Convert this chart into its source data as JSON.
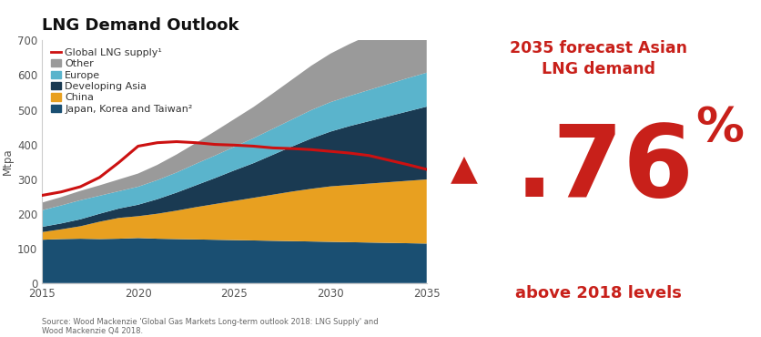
{
  "title": "LNG Demand Outlook",
  "ylabel": "Mtpa",
  "source_text": "Source: Wood Mackenzie 'Global Gas Markets Long-term outlook 2018: LNG Supply' and\nWood Mackenzie Q4 2018.",
  "years": [
    2015,
    2016,
    2017,
    2018,
    2019,
    2020,
    2021,
    2022,
    2023,
    2024,
    2025,
    2026,
    2027,
    2028,
    2029,
    2030,
    2031,
    2032,
    2033,
    2034,
    2035
  ],
  "japan_korea_taiwan": [
    125,
    127,
    128,
    127,
    128,
    130,
    128,
    127,
    126,
    125,
    124,
    123,
    122,
    121,
    120,
    119,
    118,
    117,
    116,
    115,
    114
  ],
  "china": [
    22,
    28,
    36,
    50,
    60,
    63,
    72,
    82,
    93,
    103,
    113,
    123,
    133,
    143,
    152,
    160,
    165,
    170,
    175,
    180,
    185
  ],
  "developing_asia": [
    15,
    17,
    20,
    23,
    27,
    33,
    42,
    52,
    63,
    75,
    88,
    100,
    115,
    130,
    145,
    158,
    170,
    180,
    190,
    200,
    210
  ],
  "europe": [
    48,
    52,
    55,
    52,
    50,
    52,
    55,
    58,
    62,
    65,
    68,
    72,
    75,
    78,
    82,
    85,
    87,
    90,
    93,
    96,
    98
  ],
  "other": [
    22,
    24,
    27,
    30,
    34,
    38,
    44,
    52,
    60,
    70,
    80,
    90,
    102,
    115,
    128,
    140,
    150,
    158,
    165,
    172,
    178
  ],
  "global_lng_supply": [
    253,
    263,
    278,
    305,
    348,
    395,
    405,
    408,
    405,
    400,
    398,
    395,
    390,
    388,
    385,
    380,
    375,
    368,
    355,
    342,
    328
  ],
  "colors": {
    "japan_korea_taiwan": "#1a4f72",
    "china": "#e8a020",
    "developing_asia": "#1a3a52",
    "europe": "#5ab4cc",
    "other": "#9a9a9a",
    "global_lng_supply": "#cc1111"
  },
  "legend_labels": [
    "Global LNG supply¹",
    "Other",
    "Europe",
    "Developing Asia",
    "China",
    "Japan, Korea and Taiwan²"
  ],
  "ylim": [
    0,
    700
  ],
  "xlim_min": 2015,
  "xlim_max": 2035,
  "yticks": [
    0,
    100,
    200,
    300,
    400,
    500,
    600,
    700
  ],
  "xticks": [
    2015,
    2020,
    2025,
    2030,
    2035
  ],
  "right_panel": {
    "header": "2035 forecast Asian\nLNG demand",
    "bottom_text": "above 2018 levels",
    "color": "#c8201a"
  },
  "background_color": "#ffffff",
  "title_fontsize": 13,
  "axis_fontsize": 8.5,
  "legend_fontsize": 8.0
}
